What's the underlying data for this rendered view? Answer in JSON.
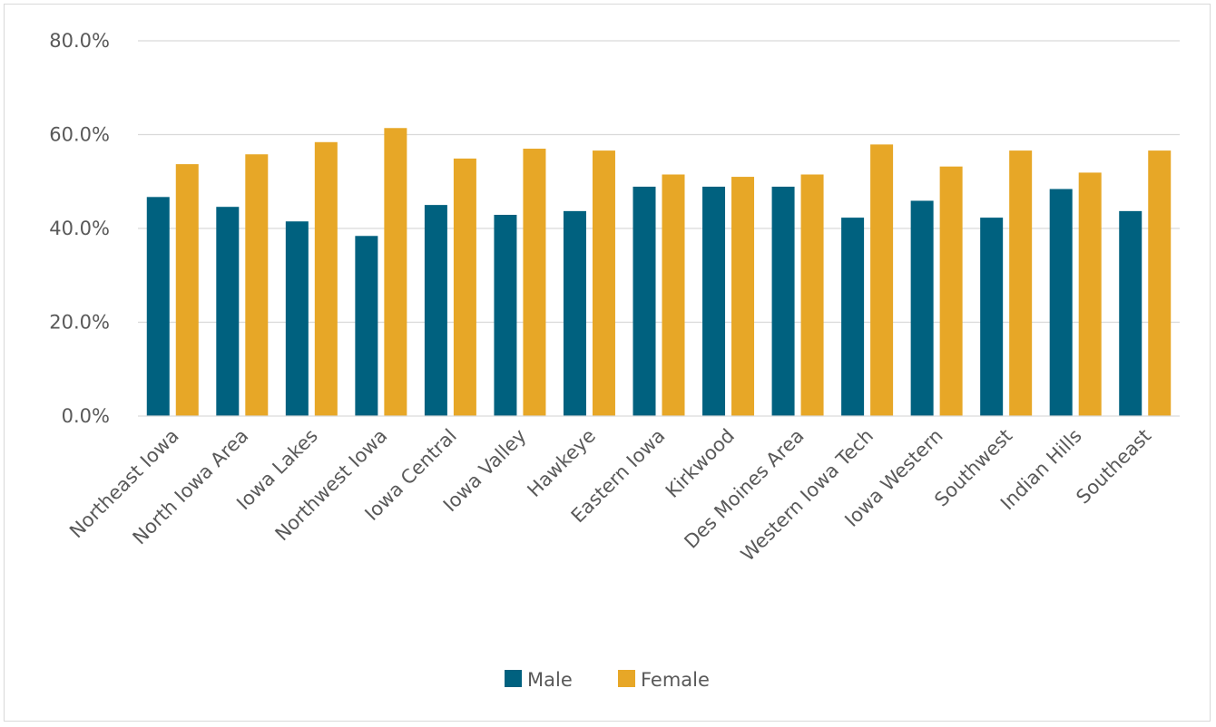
{
  "chart_data": {
    "type": "bar",
    "title": "",
    "xlabel": "",
    "ylabel": "",
    "categories": [
      "Northeast Iowa",
      "North Iowa Area",
      "Iowa Lakes",
      "Northwest Iowa",
      "Iowa Central",
      "Iowa Valley",
      "Hawkeye",
      "Eastern Iowa",
      "Kirkwood",
      "Des Moines Area",
      "Western Iowa Tech",
      "Iowa Western",
      "Southwest",
      "Indian Hills",
      "Southeast"
    ],
    "series": [
      {
        "name": "Male",
        "color": "#00617F",
        "values": [
          46.7,
          44.6,
          41.5,
          38.4,
          45.0,
          42.9,
          43.7,
          48.9,
          48.9,
          48.9,
          42.3,
          45.9,
          42.3,
          48.4,
          43.7
        ]
      },
      {
        "name": "Female",
        "color": "#E7A727",
        "values": [
          53.7,
          55.8,
          58.4,
          61.4,
          54.9,
          57.0,
          56.6,
          51.5,
          51.0,
          51.5,
          57.9,
          53.2,
          56.6,
          51.9,
          56.6
        ]
      }
    ],
    "ylim": [
      0,
      80
    ],
    "yticks": [
      0,
      20,
      40,
      60,
      80
    ],
    "ytick_labels": [
      "0.0%",
      "20.0%",
      "40.0%",
      "60.0%",
      "80.0%"
    ],
    "grid": true,
    "legend_position": "bottom"
  }
}
